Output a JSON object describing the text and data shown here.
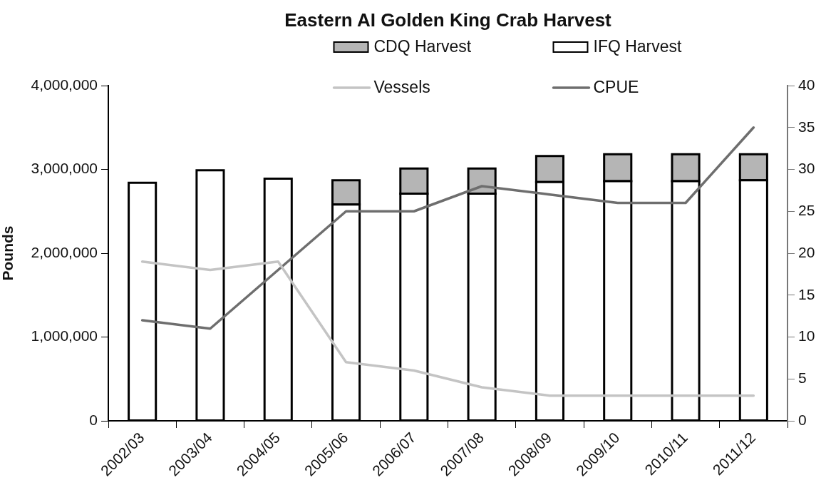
{
  "chart_data": {
    "type": "bar",
    "title": "Eastern AI Golden King Crab Harvest",
    "ylabel": "Pounds",
    "categories": [
      "2002/03",
      "2003/04",
      "2004/05",
      "2005/06",
      "2006/07",
      "2007/08",
      "2008/09",
      "2009/10",
      "2010/11",
      "2011/12"
    ],
    "stacked": true,
    "series": [
      {
        "name": "IFQ Harvest",
        "color": "#ffffff",
        "values": [
          2840000,
          2990000,
          2890000,
          2580000,
          2710000,
          2710000,
          2850000,
          2860000,
          2860000,
          2870000
        ]
      },
      {
        "name": "CDQ Harvest",
        "color": "#b5b5b5",
        "values": [
          null,
          null,
          null,
          290000,
          300000,
          300000,
          310000,
          320000,
          320000,
          310000
        ]
      },
      {
        "name": "Vessels",
        "type": "line",
        "axis": "y2",
        "color": "#c4c4c4",
        "values": [
          19,
          18,
          19,
          7,
          6,
          4,
          3,
          3,
          3,
          3
        ]
      },
      {
        "name": "CPUE",
        "type": "line",
        "axis": "y2",
        "color": "#6e6e6e",
        "values": [
          12,
          11,
          18,
          25,
          25,
          28,
          27,
          26,
          26,
          35
        ]
      }
    ],
    "ylim": [
      0,
      4000000
    ],
    "yticks": [
      0,
      {
        "value": 1000000,
        "label": "1,000,000"
      },
      {
        "value": 2000000,
        "label": "2,000,000"
      },
      {
        "value": 3000000,
        "label": "3,000,000"
      },
      {
        "value": 4000000,
        "label": "4,000,000"
      }
    ],
    "y2lim": [
      0,
      40
    ],
    "y2ticks": [
      0,
      5,
      10,
      15,
      20,
      25,
      30,
      35,
      40
    ],
    "legend": "top"
  }
}
